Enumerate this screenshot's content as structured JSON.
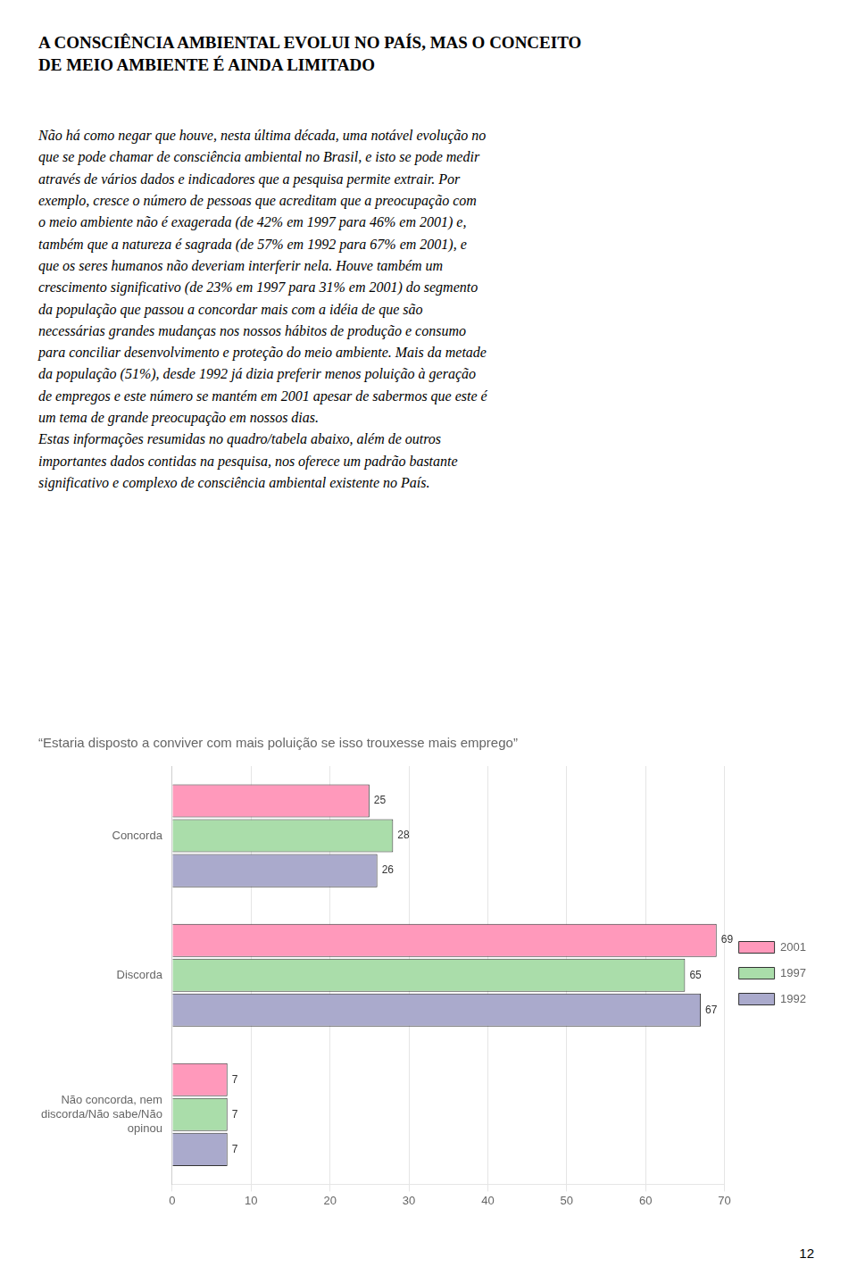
{
  "title": "A CONSCIÊNCIA AMBIENTAL EVOLUI NO PAÍS,  MAS O CONCEITO\nDE MEIO AMBIENTE É AINDA LIMITADO",
  "body_text": "Não há como negar que houve, nesta última década, uma notável evolução no\nque se pode chamar de consciência ambiental no Brasil, e isto se pode medir\natravés de vários dados e indicadores que a pesquisa permite extrair. Por\nexemplo, cresce o número de pessoas que acreditam que a preocupação com\no meio ambiente não é exagerada (de 42% em 1997 para 46% em 2001) e,\ntambém que a natureza é sagrada (de 57% em 1992  para 67% em 2001), e\nque os seres humanos não deveriam interferir nela.  Houve também um\ncrescimento significativo (de 23% em 1997 para 31% em 2001) do segmento\nda população que passou a concordar mais com a idéia de que são\nnecessárias grandes mudanças nos nossos hábitos de produção e consumo\npara conciliar desenvolvimento e proteção do meio ambiente. Mais da metade\nda população (51%), desde 1992 já dizia preferir menos poluição à geração\nde empregos e este número se mantém em 2001 apesar de sabermos que este é\num tema de grande preocupação em nossos dias.\nEstas informações resumidas no quadro/tabela abaixo, além de  outros\nimportantes dados contidas na pesquisa, nos oferece um padrão bastante\nsignificativo e complexo de consciência ambiental existente no País.",
  "page_number": "12",
  "chart_data": {
    "type": "bar",
    "orientation": "horizontal",
    "title": "“Estaria disposto a conviver com mais poluição se isso trouxesse mais emprego”",
    "categories": [
      "Concorda",
      "Discorda",
      "Não concorda, nem\ndiscorda/Não sabe/Não\nopinou"
    ],
    "series": [
      {
        "name": "2001",
        "color": "#FF99BB",
        "values": [
          25,
          69,
          7
        ]
      },
      {
        "name": "1997",
        "color": "#AADDAA",
        "values": [
          28,
          65,
          7
        ]
      },
      {
        "name": "1992",
        "color": "#AAAACC",
        "values": [
          26,
          67,
          7
        ]
      }
    ],
    "xlim": [
      0,
      70
    ],
    "xticks": [
      0,
      10,
      20,
      30,
      40,
      50,
      60,
      70
    ],
    "grid": true,
    "legend": "right",
    "data_labels": true
  }
}
